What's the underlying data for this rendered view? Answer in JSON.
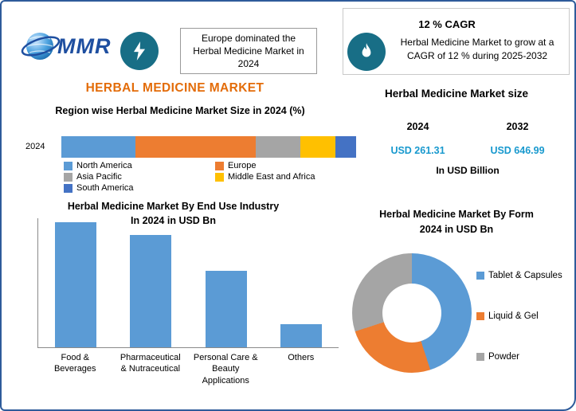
{
  "brand": {
    "logo_text": "MMR"
  },
  "header": {
    "europe_note": "Europe dominated the Herbal Medicine Market in 2024",
    "cagr_title": "12 % CAGR",
    "cagr_note": "Herbal Medicine Market to grow at a CAGR of 12 % during 2025-2032"
  },
  "title": "HERBAL MEDICINE MARKET",
  "market_size": {
    "title": "Herbal Medicine Market size",
    "year_start": "2024",
    "year_end": "2032",
    "value_start": "USD 261.31",
    "value_end": "USD 646.99",
    "unit": "In USD Billion",
    "value_color": "#1899CE"
  },
  "colors": {
    "frame_border": "#2E5B9A",
    "badge_teal": "#186E86",
    "title_orange": "#E36C09"
  },
  "chart_data": [
    {
      "type": "bar",
      "subtype": "stacked-horizontal",
      "title": "Region wise Herbal Medicine Market Size in 2024 (%)",
      "category": "2024",
      "unit": "%",
      "series": [
        {
          "name": "North America",
          "value": 25,
          "color": "#5B9BD5"
        },
        {
          "name": "Europe",
          "value": 41,
          "color": "#ED7D31"
        },
        {
          "name": "Asia Pacific",
          "value": 15,
          "color": "#A5A5A5"
        },
        {
          "name": "Middle East and Africa",
          "value": 12,
          "color": "#FFC000"
        },
        {
          "name": "South America",
          "value": 7,
          "color": "#4472C4"
        }
      ],
      "legend_position": "below"
    },
    {
      "type": "bar",
      "title_line1": "Herbal Medicine Market By  End Use Industry",
      "title_line2": "In 2024 in USD Bn",
      "categories": [
        "Food & Beverages",
        "Pharmaceutical & Nutraceutical",
        "Personal Care & Beauty Applications",
        "Others"
      ],
      "values": [
        97,
        87,
        59,
        18
      ],
      "ymax": 100,
      "bar_color": "#5B9BD5",
      "grid": false,
      "ylabel": "",
      "xlabel": ""
    },
    {
      "type": "pie",
      "subtype": "donut",
      "title_line1": "Herbal Medicine Market By Form",
      "title_line2": "2024 in USD Bn",
      "slices": [
        {
          "name": "Tablet & Capsules",
          "value": 45,
          "color": "#5B9BD5"
        },
        {
          "name": "Liquid & Gel",
          "value": 25,
          "color": "#ED7D31"
        },
        {
          "name": "Powder",
          "value": 30,
          "color": "#A5A5A5"
        }
      ],
      "legend_position": "right"
    }
  ]
}
